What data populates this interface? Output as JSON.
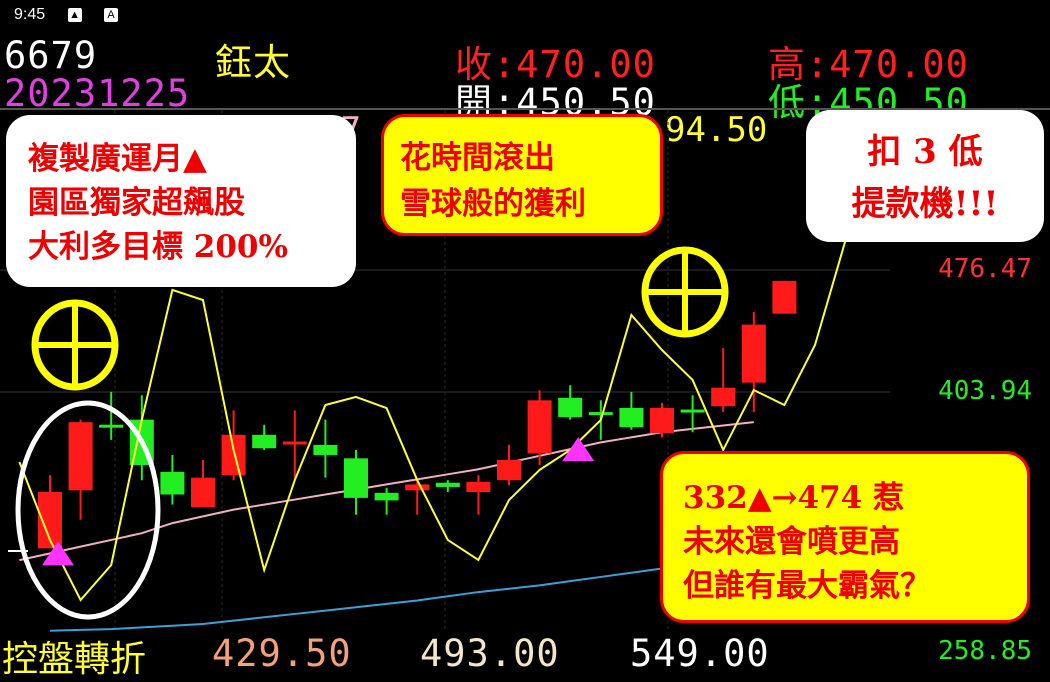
{
  "status_bar": {
    "time": "9:45",
    "icons": [
      "image-icon",
      "a-icon"
    ],
    "a_glyph": "A"
  },
  "header": {
    "code": "6679",
    "name": "鈺太",
    "date": "20231225",
    "close_label": "收:",
    "close": "470.00",
    "high_label": "高:",
    "high": "470.00",
    "open_label": "開:",
    "open": "450.50",
    "low_label": "低:",
    "low": "450.50"
  },
  "overlay_row": {
    "partial_pink": "07",
    "partial_yellow": "94.50"
  },
  "callouts": {
    "top_left": [
      "複製廣運月▲",
      "園區獨家超飆股",
      "大利多目標 200%"
    ],
    "top_middle": [
      "花時間滾出",
      "雪球般的獲利"
    ],
    "top_right": [
      "扣 3 低",
      "提款機!!!"
    ],
    "bottom_right": [
      "332▲→474 惹",
      "未來還會噴更高",
      "但誰有最大霸氣？"
    ]
  },
  "footer": {
    "label": "控盤轉折",
    "values": [
      "429.50",
      "493.00",
      "549.00"
    ],
    "value_colors": [
      "#f4a07a",
      "#f5e6c8",
      "#ffffff"
    ]
  },
  "colors": {
    "up": "#ff1a1a",
    "down": "#22ee22",
    "indicator": "#ffff33",
    "ma_short": "#f0b0c0",
    "ma_long": "#3aa0d8",
    "marker": "#ff33ff",
    "circle_mark": "#ffff00"
  },
  "chart_data": {
    "type": "candlestick",
    "y_axis_labels": [
      {
        "value": 476.47,
        "text": "476.47",
        "color": "#ff3030"
      },
      {
        "value": 403.94,
        "text": "403.94",
        "color": "#22ee22"
      },
      {
        "value": 258.85,
        "text": "258.85",
        "color": "#22ee22"
      }
    ],
    "grid": true,
    "candles": [
      {
        "o": 311,
        "h": 354.5,
        "l": 311,
        "c": 344.5
      },
      {
        "o": 345.5,
        "h": 387.5,
        "l": 328,
        "c": 386
      },
      {
        "o": 384.5,
        "h": 404,
        "l": 375.5,
        "c": 384
      },
      {
        "o": 387.5,
        "h": 402,
        "l": 351.5,
        "c": 360.5
      },
      {
        "o": 356.5,
        "h": 366.5,
        "l": 337,
        "c": 343
      },
      {
        "o": 335.5,
        "h": 363.5,
        "l": 335.5,
        "c": 353
      },
      {
        "o": 354.5,
        "h": 393,
        "l": 351.5,
        "c": 378.5
      },
      {
        "o": 378.5,
        "h": 384.5,
        "l": 369.5,
        "c": 370.5
      },
      {
        "o": 373.5,
        "h": 393,
        "l": 351.5,
        "c": 374.5
      },
      {
        "o": 372.5,
        "h": 387.5,
        "l": 353,
        "c": 366.5
      },
      {
        "o": 364.5,
        "h": 369.5,
        "l": 331,
        "c": 341
      },
      {
        "o": 344,
        "h": 347,
        "l": 331,
        "c": 339.5
      },
      {
        "o": 345.5,
        "h": 351.5,
        "l": 331,
        "c": 349
      },
      {
        "o": 350,
        "h": 351.5,
        "l": 344.5,
        "c": 347.5
      },
      {
        "o": 344.5,
        "h": 354.5,
        "l": 331,
        "c": 350.5
      },
      {
        "o": 351.5,
        "h": 372.5,
        "l": 348.5,
        "c": 363.5
      },
      {
        "o": 367.5,
        "h": 405,
        "l": 360.5,
        "c": 399
      },
      {
        "o": 400.5,
        "h": 408,
        "l": 387.5,
        "c": 389
      },
      {
        "o": 392,
        "h": 399,
        "l": 375.5,
        "c": 391.5
      },
      {
        "o": 394.5,
        "h": 404,
        "l": 381.5,
        "c": 383
      },
      {
        "o": 379.5,
        "h": 397.5,
        "l": 377,
        "c": 394.5
      },
      {
        "o": 393.5,
        "h": 402,
        "l": 380,
        "c": 393
      },
      {
        "o": 395.5,
        "h": 430,
        "l": 392,
        "c": 406.5
      },
      {
        "o": 409.5,
        "h": 451.5,
        "l": 392,
        "c": 444
      },
      {
        "o": 450.5,
        "h": 470,
        "l": 450.5,
        "c": 470
      }
    ],
    "indicator_line": [
      362.3,
      316,
      280.3,
      301.1,
      387.3,
      464.6,
      458.6,
      369.5,
      298.1,
      351.6,
      396.2,
      401,
      394.4,
      351.6,
      316,
      304.1,
      339.7,
      357.6,
      369.5,
      387.3,
      449.7,
      428.9,
      411.1,
      369.5,
      405.1,
      396.2,
      431.9,
      494.3
    ],
    "ma_short": [
      304,
      308,
      312,
      316,
      320,
      326,
      330,
      334,
      337,
      340,
      343,
      346,
      349,
      352,
      355,
      358,
      362,
      366,
      370,
      374,
      377,
      380,
      382,
      384,
      386
    ],
    "ma_long": [
      262,
      262.5,
      263,
      264,
      265,
      266,
      268,
      270,
      272,
      274,
      276,
      278,
      280,
      282.5,
      285,
      287,
      289,
      291.5,
      294,
      296.5,
      299,
      301
    ],
    "buy_markers": [
      0,
      17
    ],
    "circle_marks": [
      0,
      21
    ]
  }
}
